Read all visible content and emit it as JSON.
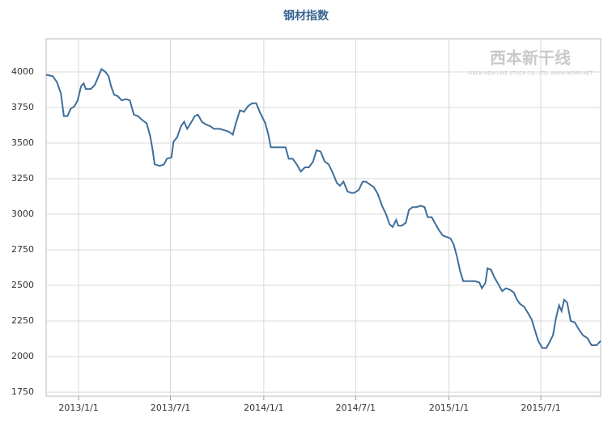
{
  "chart_data": {
    "type": "line",
    "title": "钢材指数",
    "watermark": "西本新干线",
    "watermark_sub": "XIBEN NEW LINE STOCK CO., LTD. WWW.96369.NET",
    "xlim": [
      "2012/10/29",
      "2015/10/27"
    ],
    "xticks": [
      "2013/1/1",
      "2013/7/1",
      "2014/1/1",
      "2014/7/1",
      "2015/1/1",
      "2015/7/1"
    ],
    "ylim": [
      1722,
      4233
    ],
    "yticks": [
      1750,
      2000,
      2250,
      2500,
      2750,
      3000,
      3250,
      3500,
      3750,
      4000
    ],
    "grid": true,
    "x": [
      "2012/10/29",
      "2012/11/11",
      "2012/11/19",
      "2012/11/27",
      "2012/12/3",
      "2012/12/10",
      "2012/12/16",
      "2012/12/24",
      "2012/12/30",
      "2013/1/6",
      "2013/1/11",
      "2013/1/15",
      "2013/1/25",
      "2013/2/2",
      "2013/2/8",
      "2013/2/15",
      "2013/2/23",
      "2013/3/1",
      "2013/3/6",
      "2013/3/12",
      "2013/3/19",
      "2013/3/27",
      "2013/4/4",
      "2013/4/12",
      "2013/4/20",
      "2013/4/28",
      "2013/5/7",
      "2013/5/15",
      "2013/5/22",
      "2013/5/27",
      "2013/5/31",
      "2013/6/10",
      "2013/6/18",
      "2013/6/24",
      "2013/7/3",
      "2013/7/7",
      "2013/7/14",
      "2013/7/22",
      "2013/7/28",
      "2013/8/3",
      "2013/8/10",
      "2013/8/18",
      "2013/8/24",
      "2013/9/1",
      "2013/9/9",
      "2013/9/17",
      "2013/9/25",
      "2013/10/6",
      "2013/10/16",
      "2013/10/24",
      "2013/11/1",
      "2013/11/7",
      "2013/11/15",
      "2013/11/23",
      "2013/12/1",
      "2013/12/9",
      "2013/12/17",
      "2013/12/24",
      "2014/1/4",
      "2014/1/10",
      "2014/1/15",
      "2014/1/29",
      "2014/2/13",
      "2014/2/19",
      "2014/2/27",
      "2014/3/7",
      "2014/3/15",
      "2014/3/23",
      "2014/3/31",
      "2014/4/8",
      "2014/4/15",
      "2014/4/23",
      "2014/5/1",
      "2014/5/9",
      "2014/5/17",
      "2014/5/25",
      "2014/5/31",
      "2014/6/7",
      "2014/6/15",
      "2014/6/23",
      "2014/6/28",
      "2014/7/7",
      "2014/7/15",
      "2014/7/21",
      "2014/7/29",
      "2014/8/6",
      "2014/8/14",
      "2014/8/22",
      "2014/8/30",
      "2014/9/6",
      "2014/9/12",
      "2014/9/19",
      "2014/9/23",
      "2014/9/30",
      "2014/10/8",
      "2014/10/14",
      "2014/10/21",
      "2014/10/29",
      "2014/11/6",
      "2014/11/14",
      "2014/11/20",
      "2014/11/28",
      "2014/12/4",
      "2014/12/12",
      "2014/12/20",
      "2014/12/28",
      "2015/1/4",
      "2015/1/10",
      "2015/1/17",
      "2015/1/23",
      "2015/1/29",
      "2015/2/8",
      "2015/2/21",
      "2015/3/2",
      "2015/3/7",
      "2015/3/14",
      "2015/3/18",
      "2015/3/25",
      "2015/3/31",
      "2015/4/8",
      "2015/4/16",
      "2015/4/23",
      "2015/5/1",
      "2015/5/9",
      "2015/5/15",
      "2015/5/21",
      "2015/5/29",
      "2015/6/5",
      "2015/6/13",
      "2015/6/19",
      "2015/6/26",
      "2015/7/4",
      "2015/7/12",
      "2015/7/18",
      "2015/7/25",
      "2015/7/31",
      "2015/8/6",
      "2015/8/11",
      "2015/8/16",
      "2015/8/22",
      "2015/8/29",
      "2015/9/6",
      "2015/9/14",
      "2015/9/22",
      "2015/10/1",
      "2015/10/9",
      "2015/10/19",
      "2015/10/27"
    ],
    "series": [
      {
        "name": "钢材指数",
        "color": "#3f6e9b",
        "values": [
          3980,
          3970,
          3930,
          3850,
          3690,
          3690,
          3740,
          3760,
          3800,
          3900,
          3920,
          3880,
          3880,
          3910,
          3960,
          4020,
          4000,
          3970,
          3900,
          3840,
          3830,
          3800,
          3810,
          3800,
          3700,
          3690,
          3660,
          3640,
          3550,
          3450,
          3350,
          3340,
          3350,
          3390,
          3400,
          3510,
          3540,
          3620,
          3650,
          3600,
          3640,
          3690,
          3700,
          3650,
          3630,
          3620,
          3600,
          3600,
          3590,
          3580,
          3560,
          3640,
          3730,
          3720,
          3760,
          3780,
          3780,
          3720,
          3640,
          3560,
          3470,
          3470,
          3470,
          3390,
          3390,
          3350,
          3300,
          3330,
          3330,
          3370,
          3450,
          3440,
          3370,
          3350,
          3290,
          3220,
          3200,
          3230,
          3160,
          3150,
          3150,
          3170,
          3230,
          3230,
          3210,
          3190,
          3140,
          3060,
          3000,
          2930,
          2910,
          2960,
          2920,
          2920,
          2940,
          3030,
          3050,
          3050,
          3060,
          3050,
          2980,
          2980,
          2940,
          2890,
          2850,
          2840,
          2830,
          2790,
          2700,
          2600,
          2530,
          2530,
          2530,
          2520,
          2480,
          2520,
          2620,
          2610,
          2560,
          2510,
          2460,
          2480,
          2470,
          2450,
          2400,
          2370,
          2350,
          2310,
          2260,
          2190,
          2110,
          2060,
          2060,
          2100,
          2150,
          2270,
          2360,
          2320,
          2400,
          2380,
          2250,
          2240,
          2190,
          2150,
          2130,
          2080,
          2080,
          2110
        ]
      }
    ]
  }
}
